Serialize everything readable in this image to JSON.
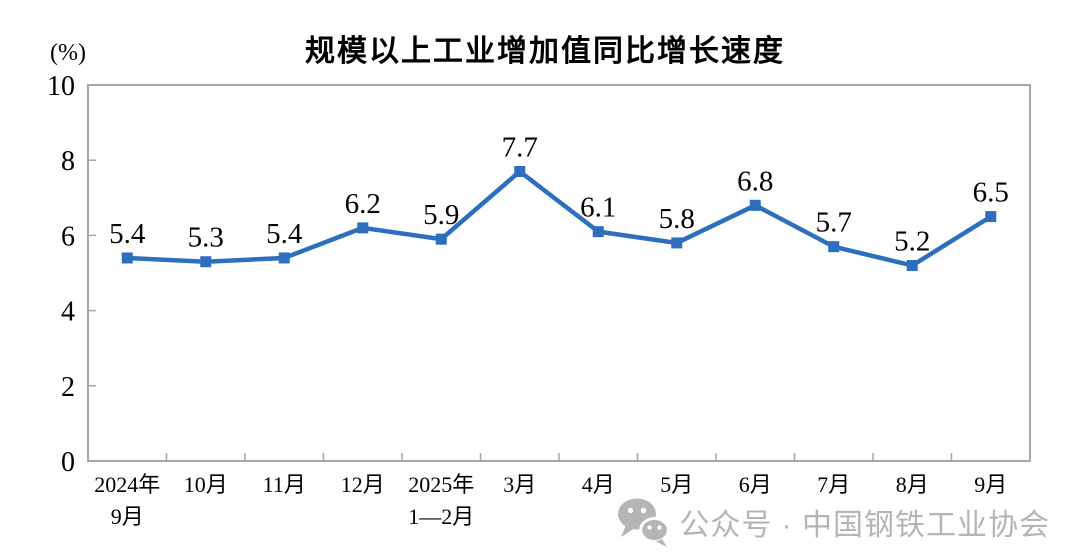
{
  "chart": {
    "title": "规模以上工业增加值同比增长速度",
    "unit_label": "(%)"
  },
  "chart_data": {
    "type": "line",
    "title": "规模以上工业增加值同比增长速度",
    "ylabel": "(%)",
    "xlabel": "",
    "categories": [
      [
        "2024年",
        "9月"
      ],
      [
        "10月"
      ],
      [
        "11月"
      ],
      [
        "12月"
      ],
      [
        "2025年",
        "1—2月"
      ],
      [
        "3月"
      ],
      [
        "4月"
      ],
      [
        "5月"
      ],
      [
        "6月"
      ],
      [
        "7月"
      ],
      [
        "8月"
      ],
      [
        "9月"
      ]
    ],
    "values": [
      5.4,
      5.3,
      5.4,
      6.2,
      5.9,
      7.7,
      6.1,
      5.8,
      6.8,
      5.7,
      5.2,
      6.5
    ],
    "data_labels": [
      "5.4",
      "5.3",
      "5.4",
      "6.2",
      "5.9",
      "7.7",
      "6.1",
      "5.8",
      "6.8",
      "5.7",
      "5.2",
      "6.5"
    ],
    "ylim": [
      0,
      10
    ],
    "yticks": [
      0,
      2,
      4,
      6,
      8,
      10
    ],
    "grid": false,
    "legend": "none",
    "line_color": "#2D6EBE",
    "axis_color": "#A6A6A6",
    "marker": "square"
  },
  "watermark": {
    "text": "公众号 · 中国钢铁工业协会",
    "icon": "wechat-icon",
    "color": "#B5B5B5"
  }
}
